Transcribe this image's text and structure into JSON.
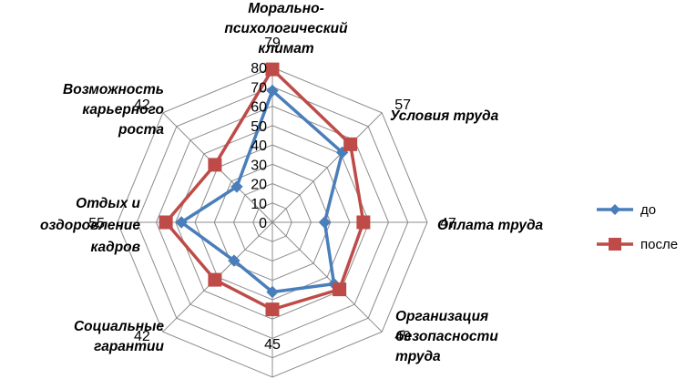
{
  "chart_data": {
    "type": "radar",
    "title": "",
    "categories": [
      [
        "Морально-",
        "психологический",
        "климат"
      ],
      [
        "Условия труда"
      ],
      [
        "Оплата труда"
      ],
      [
        "Организация",
        "безопасности",
        "труда"
      ],
      [
        ""
      ],
      [
        "Социальные",
        "гарантии"
      ],
      [
        "Отдых и",
        "оздоровление",
        "кадров"
      ],
      [
        "Возможность",
        "карьерного",
        "роста"
      ]
    ],
    "axis": {
      "min": 0,
      "max": 80,
      "step": 10,
      "ticks": [
        "0",
        "10",
        "20",
        "30",
        "40",
        "50",
        "60",
        "70",
        "80"
      ]
    },
    "series": [
      {
        "name": "до",
        "color": "#4a7ebb",
        "marker": "diamond",
        "values": [
          68,
          51,
          27,
          45,
          36,
          28,
          47,
          26
        ]
      },
      {
        "name": "после",
        "color": "#be4b48",
        "marker": "square",
        "values": [
          79,
          57,
          47,
          49,
          45,
          42,
          55,
          42
        ]
      }
    ],
    "data_labels": [
      "79",
      "57",
      "47",
      "49",
      "45",
      "42",
      "55",
      "42"
    ],
    "legend": "right",
    "grid": true
  }
}
